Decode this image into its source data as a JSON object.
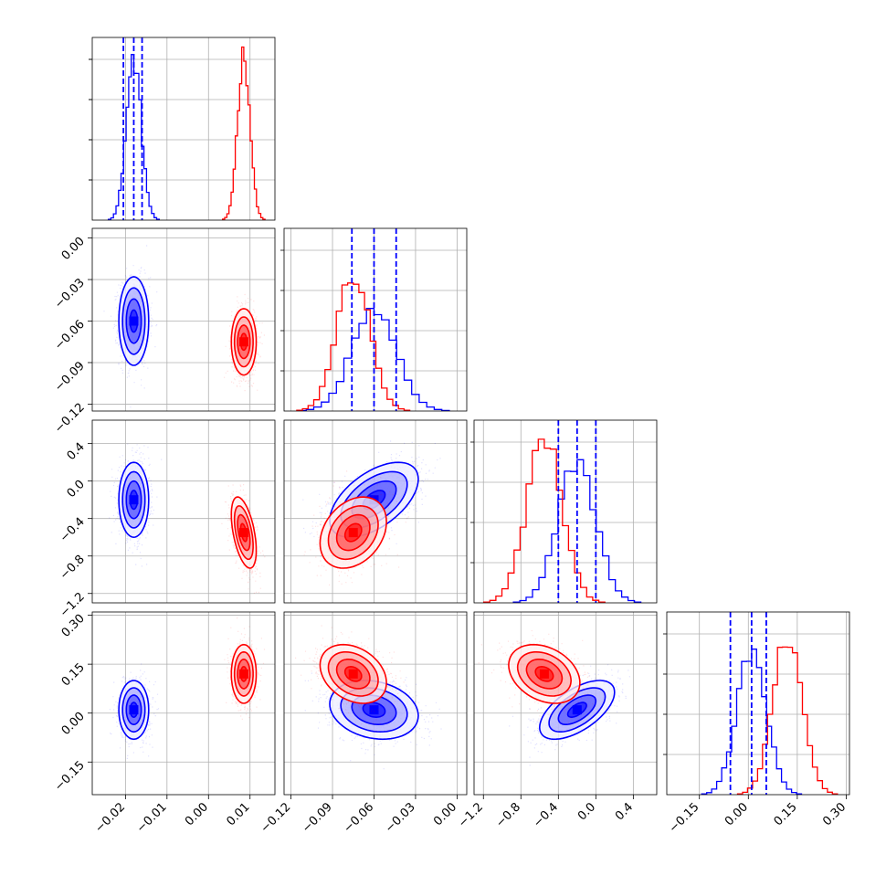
{
  "chart_data": {
    "type": "corner",
    "grid": true,
    "colors": {
      "series_a": "#0000ff",
      "series_b": "#ff0000"
    },
    "series": [
      {
        "color": "#0000ff",
        "mean": [
          -0.018,
          -0.06,
          -0.2,
          0.01
        ],
        "sd": [
          0.0018,
          0.016,
          0.2,
          0.045
        ],
        "corr": [
          [
            1,
            0,
            0,
            0
          ],
          [
            0,
            1,
            0.55,
            -0.2
          ],
          [
            0,
            0.55,
            1,
            0.6
          ],
          [
            0,
            -0.2,
            0.6,
            1
          ]
        ],
        "quantiles": [
          [
            -0.0205,
            -0.018,
            -0.016
          ],
          [
            -0.076,
            -0.06,
            -0.044
          ],
          [
            -0.4,
            -0.2,
            0.0
          ],
          [
            -0.055,
            0.01,
            0.055
          ]
        ],
        "hist_peaks": [
          0.88,
          0.55,
          0.78,
          0.78
        ]
      },
      {
        "color": "#ff0000",
        "mean": [
          0.0085,
          -0.075,
          -0.55,
          0.12
        ],
        "sd": [
          0.0015,
          0.012,
          0.19,
          0.045
        ],
        "corr": [
          [
            1,
            0,
            -0.5,
            0
          ],
          [
            0,
            1,
            0.3,
            -0.3
          ],
          [
            -0.5,
            0.3,
            1,
            -0.3
          ],
          [
            0,
            -0.3,
            -0.3,
            1
          ]
        ],
        "hist_peaks": [
          0.91,
          0.75,
          0.9,
          0.87
        ]
      }
    ],
    "axes": [
      {
        "range": [
          -0.028,
          0.016
        ],
        "ticks": [
          -0.02,
          -0.01,
          0.0,
          0.01
        ],
        "tick_labels": [
          "−0.02",
          "−0.01",
          "0.00",
          "0.01"
        ]
      },
      {
        "range": [
          -0.125,
          0.007
        ],
        "ticks": [
          -0.12,
          -0.09,
          -0.06,
          -0.03,
          0.0
        ],
        "tick_labels": [
          "−0.12",
          "−0.09",
          "−0.06",
          "−0.03",
          "0.00"
        ]
      },
      {
        "range": [
          -1.3,
          0.65
        ],
        "ticks": [
          -1.2,
          -0.8,
          -0.4,
          0.0,
          0.4
        ],
        "tick_labels": [
          "−1.2",
          "−0.8",
          "−0.4",
          "0.0",
          "0.4"
        ]
      },
      {
        "range": [
          -0.25,
          0.31
        ],
        "ticks": [
          -0.15,
          0.0,
          0.15,
          0.3
        ],
        "tick_labels": [
          "−0.15",
          "0.00",
          "0.15",
          "0.30"
        ]
      }
    ],
    "y_tick_labels_fourth_row": [
      "−0.15",
      "0.00",
      "0.15",
      "0.30"
    ]
  }
}
